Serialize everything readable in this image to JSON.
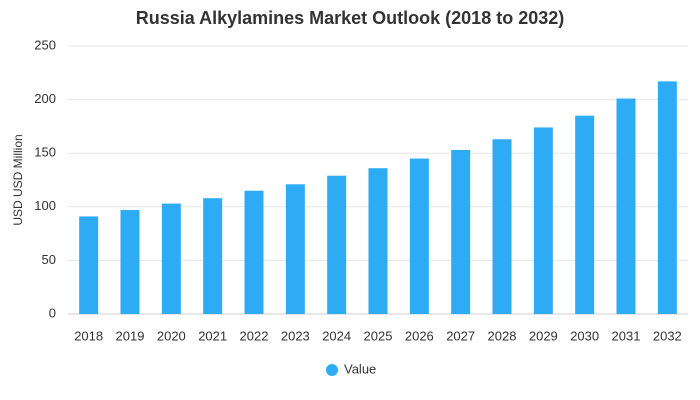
{
  "chart_data": {
    "type": "bar",
    "title": "Russia Alkylamines Market Outlook (2018 to 2032)",
    "y_label": "USD USD Million",
    "categories": [
      "2018",
      "2019",
      "2020",
      "2021",
      "2022",
      "2023",
      "2024",
      "2025",
      "2026",
      "2027",
      "2028",
      "2029",
      "2030",
      "2031",
      "2032"
    ],
    "series": [
      {
        "name": "Value",
        "color": "#2eabf5",
        "values": [
          91,
          97,
          103,
          108,
          115,
          121,
          129,
          136,
          145,
          153,
          163,
          174,
          185,
          201,
          217
        ]
      }
    ],
    "ylim": [
      0,
      250
    ],
    "yticks": [
      0,
      50,
      100,
      150,
      200,
      250
    ],
    "grid": true,
    "legend": "bottom"
  }
}
